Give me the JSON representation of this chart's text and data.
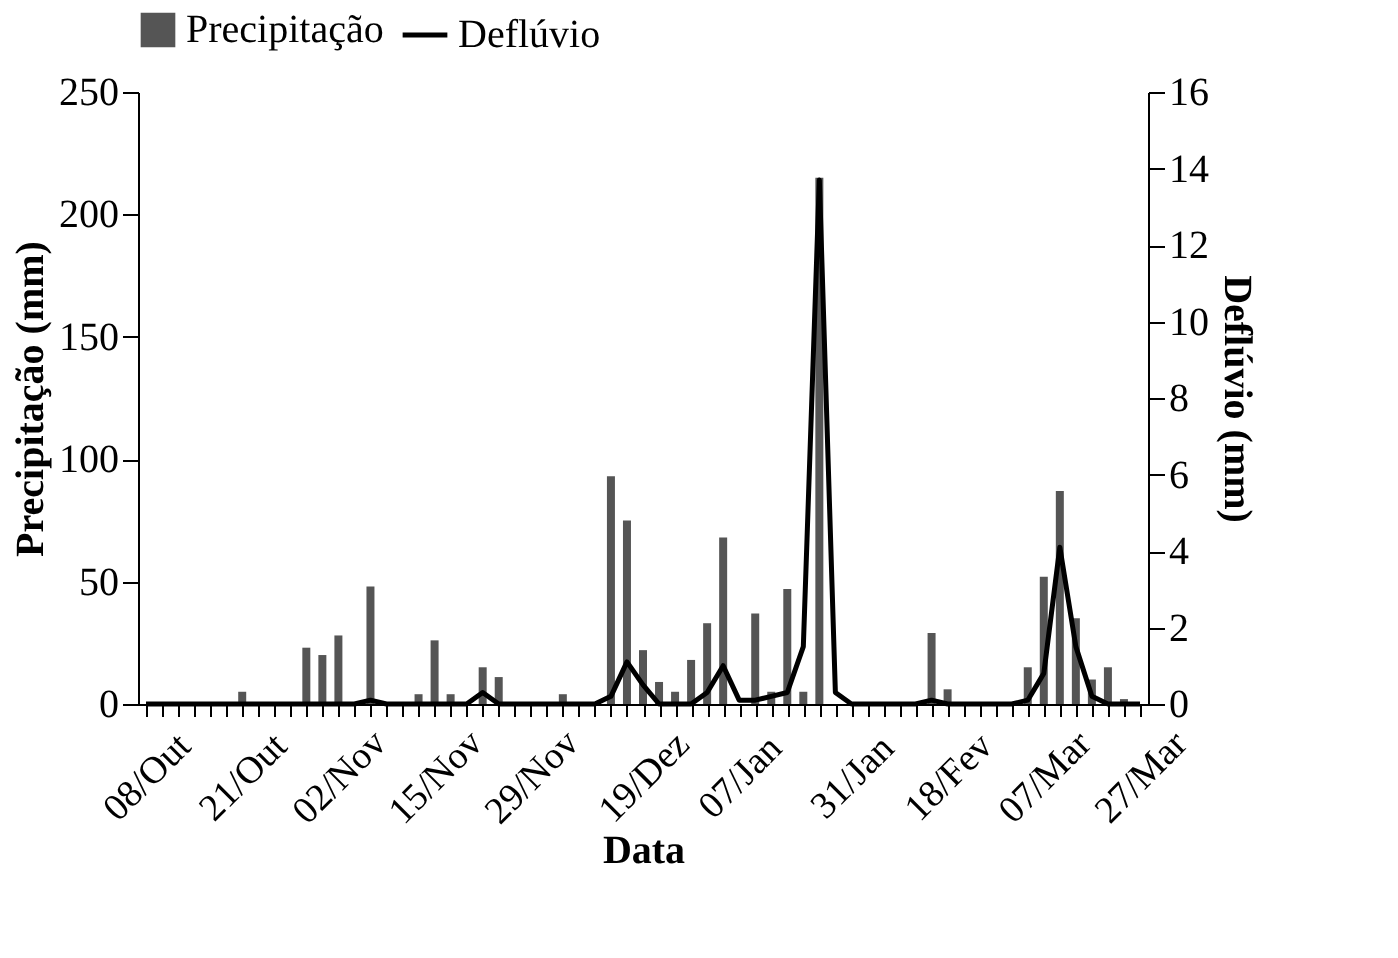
{
  "chart_data": {
    "type": "bar",
    "xlabel": "Data",
    "ylabel": "Precipitação (mm)",
    "y2label": "Deflúvio (mm)",
    "categories": [
      "08/Out",
      null,
      null,
      null,
      null,
      null,
      "21/Out",
      null,
      null,
      null,
      null,
      null,
      "02/Nov",
      null,
      null,
      null,
      null,
      null,
      "15/Nov",
      null,
      null,
      null,
      null,
      null,
      "29/Nov",
      null,
      null,
      null,
      null,
      null,
      null,
      "19/Dez",
      null,
      null,
      null,
      null,
      null,
      "07/Jan",
      null,
      null,
      null,
      null,
      null,
      null,
      "31/Jan",
      null,
      null,
      null,
      null,
      null,
      "18/Fev",
      null,
      null,
      null,
      null,
      null,
      "07/Mar",
      null,
      null,
      null,
      null,
      null,
      "27/Mar"
    ],
    "series": [
      {
        "name": "Precipitação",
        "color": "#555555",
        "values": [
          null,
          null,
          null,
          null,
          null,
          null,
          5,
          null,
          null,
          null,
          23,
          20,
          28,
          null,
          48,
          null,
          null,
          4,
          26,
          4,
          null,
          15,
          11,
          null,
          null,
          null,
          4,
          null,
          null,
          93,
          75,
          22,
          9,
          5,
          18,
          33,
          68,
          null,
          37,
          5,
          47,
          5,
          215,
          null,
          null,
          null,
          null,
          null,
          null,
          29,
          6,
          null,
          null,
          null,
          null,
          15,
          52,
          87,
          35,
          10,
          15,
          2,
          null
        ]
      },
      {
        "name": "Deflúvio",
        "type": "line",
        "axis": "y2",
        "color": "#000000",
        "values": [
          0,
          0,
          0,
          0,
          0,
          0,
          0,
          0,
          0,
          0,
          0,
          0,
          0,
          0,
          0.1,
          0,
          0,
          0,
          0,
          0,
          0,
          0.3,
          0,
          0,
          0,
          0,
          0,
          0,
          0,
          0.2,
          1.1,
          0.5,
          0,
          0,
          0,
          0.3,
          1.0,
          0.1,
          0.1,
          0.2,
          0.3,
          1.5,
          13.7,
          0.3,
          0,
          0,
          0,
          0,
          0,
          0.1,
          0,
          0,
          0,
          0,
          0,
          0.1,
          0.8,
          4.1,
          1.5,
          0.2,
          0,
          0,
          0
        ]
      }
    ],
    "ylim": [
      0,
      250
    ],
    "yticks": [
      0,
      50,
      100,
      150,
      200,
      250
    ],
    "y2lim": [
      0,
      16
    ],
    "y2ticks": [
      0,
      2,
      4,
      6,
      8,
      10,
      12,
      14,
      16
    ],
    "legend": "top"
  }
}
